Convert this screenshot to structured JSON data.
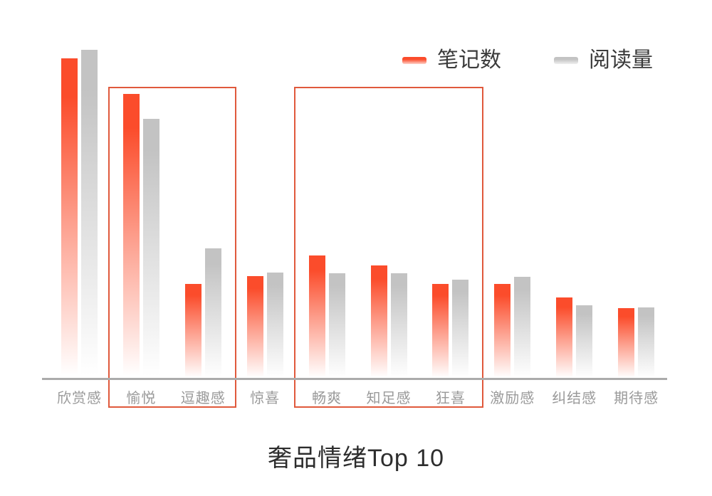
{
  "title": "奢品情绪Top 10",
  "legend": {
    "items": [
      {
        "id": "notes",
        "label": "笔记数",
        "color": "#FB4C2B"
      },
      {
        "id": "reads",
        "label": "阅读量",
        "color": "#C3C3C3"
      }
    ]
  },
  "chart_data": {
    "type": "bar",
    "title": "奢品情绪Top 10",
    "categories": [
      "欣赏感",
      "愉悦",
      "逗趣感",
      "惊喜",
      "畅爽",
      "知足感",
      "狂喜",
      "激励感",
      "纠结感",
      "期待感"
    ],
    "series": [
      {
        "name": "笔记数",
        "color": "#FB4C2B",
        "values": [
          97.4,
          86.6,
          28.8,
          31.2,
          37.4,
          34.4,
          28.8,
          28.8,
          24.7,
          21.4
        ]
      },
      {
        "name": "阅读量",
        "color": "#C3C3C3",
        "values": [
          100.0,
          79.0,
          39.6,
          32.3,
          32.0,
          32.0,
          30.1,
          31.0,
          22.3,
          21.6
        ]
      }
    ],
    "ylim": [
      0,
      100
    ],
    "units": "relative scale (no numeric value axis shown)",
    "grid": false,
    "legend_position": "top-right",
    "bar_style": "solid color at top fading to white at the base",
    "axis_line_color": "#ABABAB",
    "label_color": "#9A9A9A",
    "highlight_boxes": [
      {
        "from_category": "愉悦",
        "to_category": "逗趣感",
        "stroke_color": "#E0593C"
      },
      {
        "from_category": "畅爽",
        "to_category": "狂喜",
        "stroke_color": "#E0593C"
      }
    ]
  }
}
